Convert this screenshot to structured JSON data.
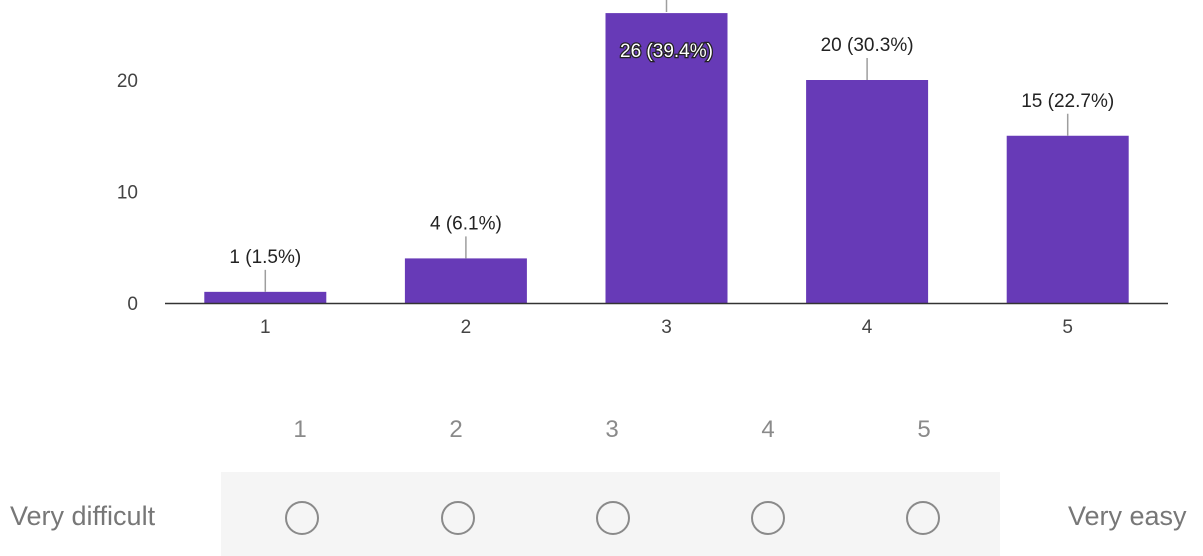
{
  "chart_data": {
    "type": "bar",
    "categories": [
      "1",
      "2",
      "3",
      "4",
      "5"
    ],
    "values": [
      1,
      4,
      26,
      20,
      15
    ],
    "data_labels": [
      "1 (1.5%)",
      "4 (6.1%)",
      "26 (39.4%)",
      "20 (30.3%)",
      "15 (22.7%)"
    ],
    "y_ticks": [
      "0",
      "10",
      "20"
    ],
    "ylim": [
      0,
      26
    ],
    "title": "",
    "xlabel": "",
    "ylabel": "",
    "grid": false,
    "legend": "none",
    "bar_color": "#673ab7",
    "axis_color": "#333333",
    "label_color": "#222222",
    "tick_color": "#444444",
    "leader_line_color": "#9e9e9e"
  },
  "scale_question": {
    "options": [
      "1",
      "2",
      "3",
      "4",
      "5"
    ],
    "low_label": "Very difficult",
    "high_label": "Very easy",
    "selected": null
  }
}
